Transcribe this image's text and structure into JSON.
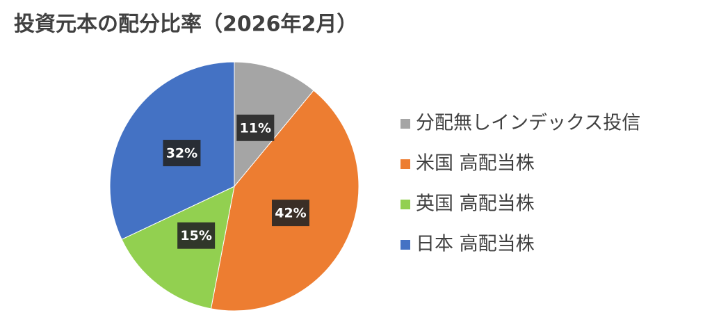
{
  "chart_data": {
    "type": "pie",
    "title": "投資元本の配分比率（2026年2月）",
    "categories": [
      "分配無しインデックス投信",
      "米国 高配当株",
      "英国 高配当株",
      "日本 高配当株"
    ],
    "values": [
      11,
      42,
      15,
      32
    ],
    "value_labels": [
      "11%",
      "42%",
      "15%",
      "32%"
    ],
    "colors": [
      "#a5a5a5",
      "#ed7d31",
      "#92d050",
      "#4472c4"
    ],
    "legend": "right"
  }
}
